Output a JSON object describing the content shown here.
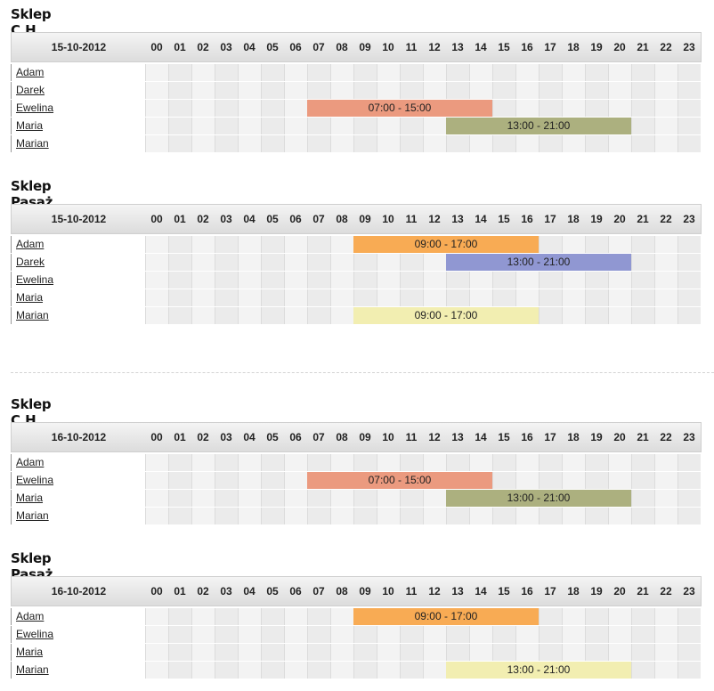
{
  "hours": [
    "00",
    "01",
    "02",
    "03",
    "04",
    "05",
    "06",
    "07",
    "08",
    "09",
    "10",
    "11",
    "12",
    "13",
    "14",
    "15",
    "16",
    "17",
    "18",
    "19",
    "20",
    "21",
    "22",
    "23"
  ],
  "colors": {
    "salmon": "#eb9a7f",
    "olive": "#acb07f",
    "orange": "#f8ab54",
    "periwinkle": "#9097d2",
    "pale_yellow": "#f2eeb1"
  },
  "sections": [
    {
      "title": "Sklep C.H.",
      "date": "15-10-2012",
      "employees": [
        {
          "name": "Adam"
        },
        {
          "name": "Darek"
        },
        {
          "name": "Ewelina",
          "shift": {
            "label": "07:00 - 15:00",
            "start": 7,
            "end": 15,
            "color": "#eb9a7f"
          }
        },
        {
          "name": "Maria",
          "shift": {
            "label": "13:00 - 21:00",
            "start": 13,
            "end": 21,
            "color": "#acb07f"
          }
        },
        {
          "name": "Marian"
        }
      ]
    },
    {
      "title": "Sklep Pasaż",
      "date": "15-10-2012",
      "employees": [
        {
          "name": "Adam",
          "shift": {
            "label": "09:00 - 17:00",
            "start": 9,
            "end": 17,
            "color": "#f8ab54"
          }
        },
        {
          "name": "Darek",
          "shift": {
            "label": "13:00 - 21:00",
            "start": 13,
            "end": 21,
            "color": "#9097d2"
          }
        },
        {
          "name": "Ewelina"
        },
        {
          "name": "Maria"
        },
        {
          "name": "Marian",
          "shift": {
            "label": "09:00 - 17:00",
            "start": 9,
            "end": 17,
            "color": "#f2eeb1"
          }
        }
      ]
    },
    {
      "title": "Sklep C.H.",
      "date": "16-10-2012",
      "employees": [
        {
          "name": "Adam"
        },
        {
          "name": "Ewelina",
          "shift": {
            "label": "07:00 - 15:00",
            "start": 7,
            "end": 15,
            "color": "#eb9a7f"
          }
        },
        {
          "name": "Maria",
          "shift": {
            "label": "13:00 - 21:00",
            "start": 13,
            "end": 21,
            "color": "#acb07f"
          }
        },
        {
          "name": "Marian"
        }
      ]
    },
    {
      "title": "Sklep Pasaż",
      "date": "16-10-2012",
      "employees": [
        {
          "name": "Adam",
          "shift": {
            "label": "09:00 - 17:00",
            "start": 9,
            "end": 17,
            "color": "#f8ab54"
          }
        },
        {
          "name": "Ewelina"
        },
        {
          "name": "Maria"
        },
        {
          "name": "Marian",
          "shift": {
            "label": "13:00 - 21:00",
            "start": 13,
            "end": 21,
            "color": "#f2eeb1"
          }
        }
      ]
    }
  ]
}
